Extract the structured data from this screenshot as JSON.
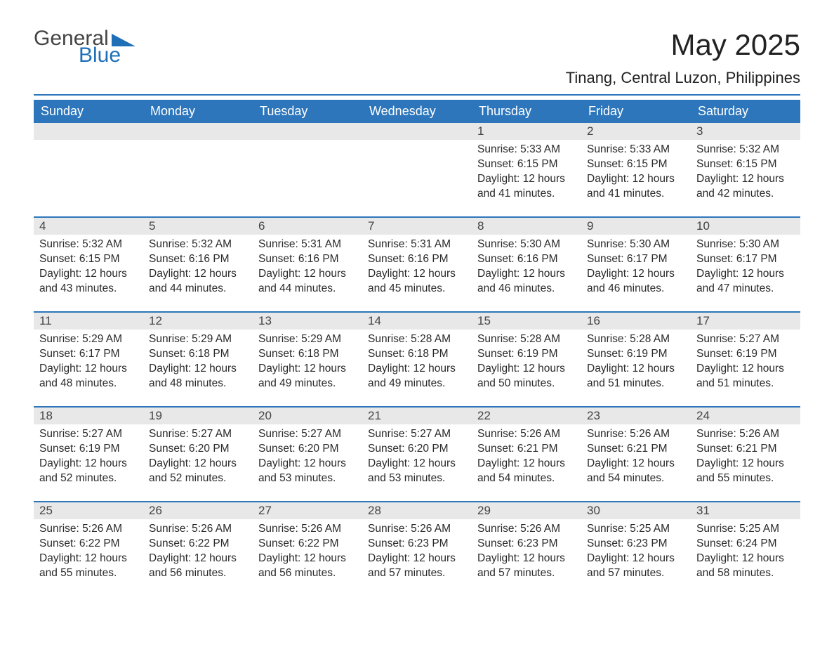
{
  "logo": {
    "text1": "General",
    "text2": "Blue",
    "accent_color": "#1e6fb8",
    "text_color": "#444444"
  },
  "header": {
    "title": "May 2025",
    "location": "Tinang, Central Luzon, Philippines",
    "title_fontsize": 42,
    "location_fontsize": 22
  },
  "colors": {
    "header_bg": "#2d76bb",
    "header_text": "#ffffff",
    "daynum_bg": "#e8e8e8",
    "body_text": "#2a2a2a",
    "divider": "#2d76bb",
    "page_bg": "#ffffff"
  },
  "calendar": {
    "type": "table",
    "columns": [
      "Sunday",
      "Monday",
      "Tuesday",
      "Wednesday",
      "Thursday",
      "Friday",
      "Saturday"
    ],
    "first_day_index": 4,
    "days": [
      {
        "n": "1",
        "sunrise": "5:33 AM",
        "sunset": "6:15 PM",
        "daylight": "12 hours and 41 minutes."
      },
      {
        "n": "2",
        "sunrise": "5:33 AM",
        "sunset": "6:15 PM",
        "daylight": "12 hours and 41 minutes."
      },
      {
        "n": "3",
        "sunrise": "5:32 AM",
        "sunset": "6:15 PM",
        "daylight": "12 hours and 42 minutes."
      },
      {
        "n": "4",
        "sunrise": "5:32 AM",
        "sunset": "6:15 PM",
        "daylight": "12 hours and 43 minutes."
      },
      {
        "n": "5",
        "sunrise": "5:32 AM",
        "sunset": "6:16 PM",
        "daylight": "12 hours and 44 minutes."
      },
      {
        "n": "6",
        "sunrise": "5:31 AM",
        "sunset": "6:16 PM",
        "daylight": "12 hours and 44 minutes."
      },
      {
        "n": "7",
        "sunrise": "5:31 AM",
        "sunset": "6:16 PM",
        "daylight": "12 hours and 45 minutes."
      },
      {
        "n": "8",
        "sunrise": "5:30 AM",
        "sunset": "6:16 PM",
        "daylight": "12 hours and 46 minutes."
      },
      {
        "n": "9",
        "sunrise": "5:30 AM",
        "sunset": "6:17 PM",
        "daylight": "12 hours and 46 minutes."
      },
      {
        "n": "10",
        "sunrise": "5:30 AM",
        "sunset": "6:17 PM",
        "daylight": "12 hours and 47 minutes."
      },
      {
        "n": "11",
        "sunrise": "5:29 AM",
        "sunset": "6:17 PM",
        "daylight": "12 hours and 48 minutes."
      },
      {
        "n": "12",
        "sunrise": "5:29 AM",
        "sunset": "6:18 PM",
        "daylight": "12 hours and 48 minutes."
      },
      {
        "n": "13",
        "sunrise": "5:29 AM",
        "sunset": "6:18 PM",
        "daylight": "12 hours and 49 minutes."
      },
      {
        "n": "14",
        "sunrise": "5:28 AM",
        "sunset": "6:18 PM",
        "daylight": "12 hours and 49 minutes."
      },
      {
        "n": "15",
        "sunrise": "5:28 AM",
        "sunset": "6:19 PM",
        "daylight": "12 hours and 50 minutes."
      },
      {
        "n": "16",
        "sunrise": "5:28 AM",
        "sunset": "6:19 PM",
        "daylight": "12 hours and 51 minutes."
      },
      {
        "n": "17",
        "sunrise": "5:27 AM",
        "sunset": "6:19 PM",
        "daylight": "12 hours and 51 minutes."
      },
      {
        "n": "18",
        "sunrise": "5:27 AM",
        "sunset": "6:19 PM",
        "daylight": "12 hours and 52 minutes."
      },
      {
        "n": "19",
        "sunrise": "5:27 AM",
        "sunset": "6:20 PM",
        "daylight": "12 hours and 52 minutes."
      },
      {
        "n": "20",
        "sunrise": "5:27 AM",
        "sunset": "6:20 PM",
        "daylight": "12 hours and 53 minutes."
      },
      {
        "n": "21",
        "sunrise": "5:27 AM",
        "sunset": "6:20 PM",
        "daylight": "12 hours and 53 minutes."
      },
      {
        "n": "22",
        "sunrise": "5:26 AM",
        "sunset": "6:21 PM",
        "daylight": "12 hours and 54 minutes."
      },
      {
        "n": "23",
        "sunrise": "5:26 AM",
        "sunset": "6:21 PM",
        "daylight": "12 hours and 54 minutes."
      },
      {
        "n": "24",
        "sunrise": "5:26 AM",
        "sunset": "6:21 PM",
        "daylight": "12 hours and 55 minutes."
      },
      {
        "n": "25",
        "sunrise": "5:26 AM",
        "sunset": "6:22 PM",
        "daylight": "12 hours and 55 minutes."
      },
      {
        "n": "26",
        "sunrise": "5:26 AM",
        "sunset": "6:22 PM",
        "daylight": "12 hours and 56 minutes."
      },
      {
        "n": "27",
        "sunrise": "5:26 AM",
        "sunset": "6:22 PM",
        "daylight": "12 hours and 56 minutes."
      },
      {
        "n": "28",
        "sunrise": "5:26 AM",
        "sunset": "6:23 PM",
        "daylight": "12 hours and 57 minutes."
      },
      {
        "n": "29",
        "sunrise": "5:26 AM",
        "sunset": "6:23 PM",
        "daylight": "12 hours and 57 minutes."
      },
      {
        "n": "30",
        "sunrise": "5:25 AM",
        "sunset": "6:23 PM",
        "daylight": "12 hours and 57 minutes."
      },
      {
        "n": "31",
        "sunrise": "5:25 AM",
        "sunset": "6:24 PM",
        "daylight": "12 hours and 58 minutes."
      }
    ],
    "labels": {
      "sunrise": "Sunrise:",
      "sunset": "Sunset:",
      "daylight": "Daylight:"
    },
    "body_fontsize": 15.5,
    "daynum_fontsize": 17,
    "header_fontsize": 18
  }
}
